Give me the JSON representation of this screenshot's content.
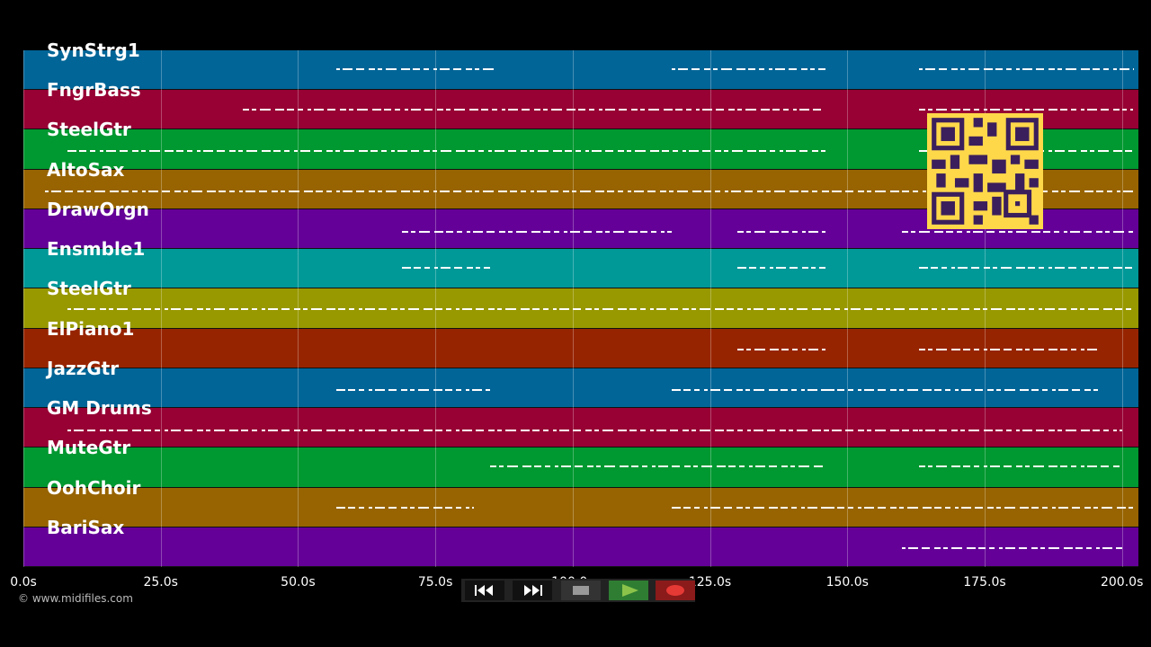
{
  "tracks": [
    {
      "name": "SynStrg1",
      "color": "#016597"
    },
    {
      "name": "FngrBass",
      "color": "#970134"
    },
    {
      "name": "SteelGtr",
      "color": "#009830"
    },
    {
      "name": "AltoSax",
      "color": "#976401"
    },
    {
      "name": "DrawOrgn",
      "color": "#640097"
    },
    {
      "name": "Ensmble1",
      "color": "#019898"
    },
    {
      "name": "SteelGtr",
      "color": "#989800"
    },
    {
      "name": "ElPiano1",
      "color": "#972401"
    },
    {
      "name": "JazzGtr",
      "color": "#016597"
    },
    {
      "name": "GM Drums",
      "color": "#970134"
    },
    {
      "name": "MuteGtr",
      "color": "#009830"
    },
    {
      "name": "OohChoir",
      "color": "#976401"
    },
    {
      "name": "BariSax",
      "color": "#640097"
    }
  ],
  "timeline": {
    "ticks": [
      "0.0s",
      "25.0s",
      "50.0s",
      "75.0s",
      "100.0s",
      "125.0s",
      "150.0s",
      "175.0s",
      "200.0s"
    ],
    "duration_s": 203
  },
  "note_segments": [
    [
      [
        57,
        86
      ],
      [
        118,
        146
      ],
      [
        163,
        202
      ]
    ],
    [
      [
        40,
        146
      ],
      [
        163,
        202
      ]
    ],
    [
      [
        8,
        146
      ],
      [
        163,
        202
      ]
    ],
    [
      [
        4,
        146
      ],
      [
        146,
        202
      ]
    ],
    [
      [
        69,
        118
      ],
      [
        130,
        146
      ],
      [
        160,
        202
      ]
    ],
    [
      [
        69,
        85
      ],
      [
        130,
        146
      ],
      [
        163,
        202
      ]
    ],
    [
      [
        8,
        202
      ]
    ],
    [
      [
        130,
        146
      ],
      [
        163,
        196
      ]
    ],
    [
      [
        57,
        85
      ],
      [
        118,
        146
      ],
      [
        146,
        196
      ]
    ],
    [
      [
        8,
        146
      ],
      [
        146,
        163
      ],
      [
        163,
        200
      ]
    ],
    [
      [
        85,
        146
      ],
      [
        163,
        200
      ]
    ],
    [
      [
        57,
        82
      ],
      [
        118,
        146
      ],
      [
        146,
        202
      ]
    ],
    [
      [
        160,
        200
      ]
    ]
  ],
  "transport": {
    "rewind_icon": "rewind-icon",
    "fastforward_icon": "fast-forward-icon",
    "stop_icon": "stop-icon",
    "play_icon": "play-icon",
    "record_icon": "record-icon",
    "play_color": "#8BC34A",
    "record_color": "#E53935"
  },
  "copyright": "© www.midifiles.com",
  "qr_color": "#FFD84A"
}
